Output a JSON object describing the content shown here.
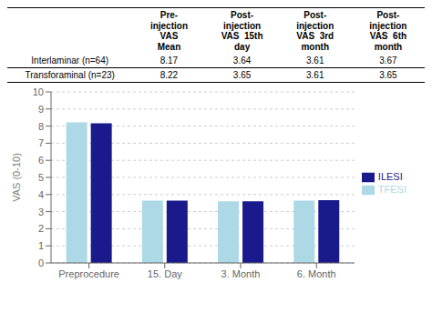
{
  "chart_data": [
    {
      "type": "table",
      "categories": [
        "Pre-\ninjection\nVAS\nMean",
        "Post-\ninjection\nVAS  15th\nday",
        "Post-\ninjection\nVAS  3rd\nmonth",
        "Post-\ninjection\nVAS  6th\nmonth"
      ],
      "series": [
        {
          "name": "Interlaminar (n=64)",
          "values": [
            8.17,
            3.64,
            3.61,
            3.67
          ]
        },
        {
          "name": "Transforaminal (n=23)",
          "values": [
            8.22,
            3.65,
            3.61,
            3.65
          ]
        }
      ]
    },
    {
      "type": "bar",
      "categories": [
        "Preprocedure",
        "15. Day",
        "3. Month",
        "6. Month"
      ],
      "series": [
        {
          "name": "TFESI",
          "color": "#add8e6",
          "values": [
            8.22,
            3.65,
            3.61,
            3.65
          ]
        },
        {
          "name": "ILESI",
          "color": "#1a1a8c",
          "values": [
            8.17,
            3.64,
            3.61,
            3.67
          ]
        }
      ],
      "ylabel": "VAS (0-10)",
      "ylim": [
        0,
        10
      ],
      "yticks": [
        0,
        1,
        2,
        3,
        4,
        5,
        6,
        7,
        8,
        9,
        10
      ],
      "grid": true,
      "legend": "right"
    }
  ]
}
